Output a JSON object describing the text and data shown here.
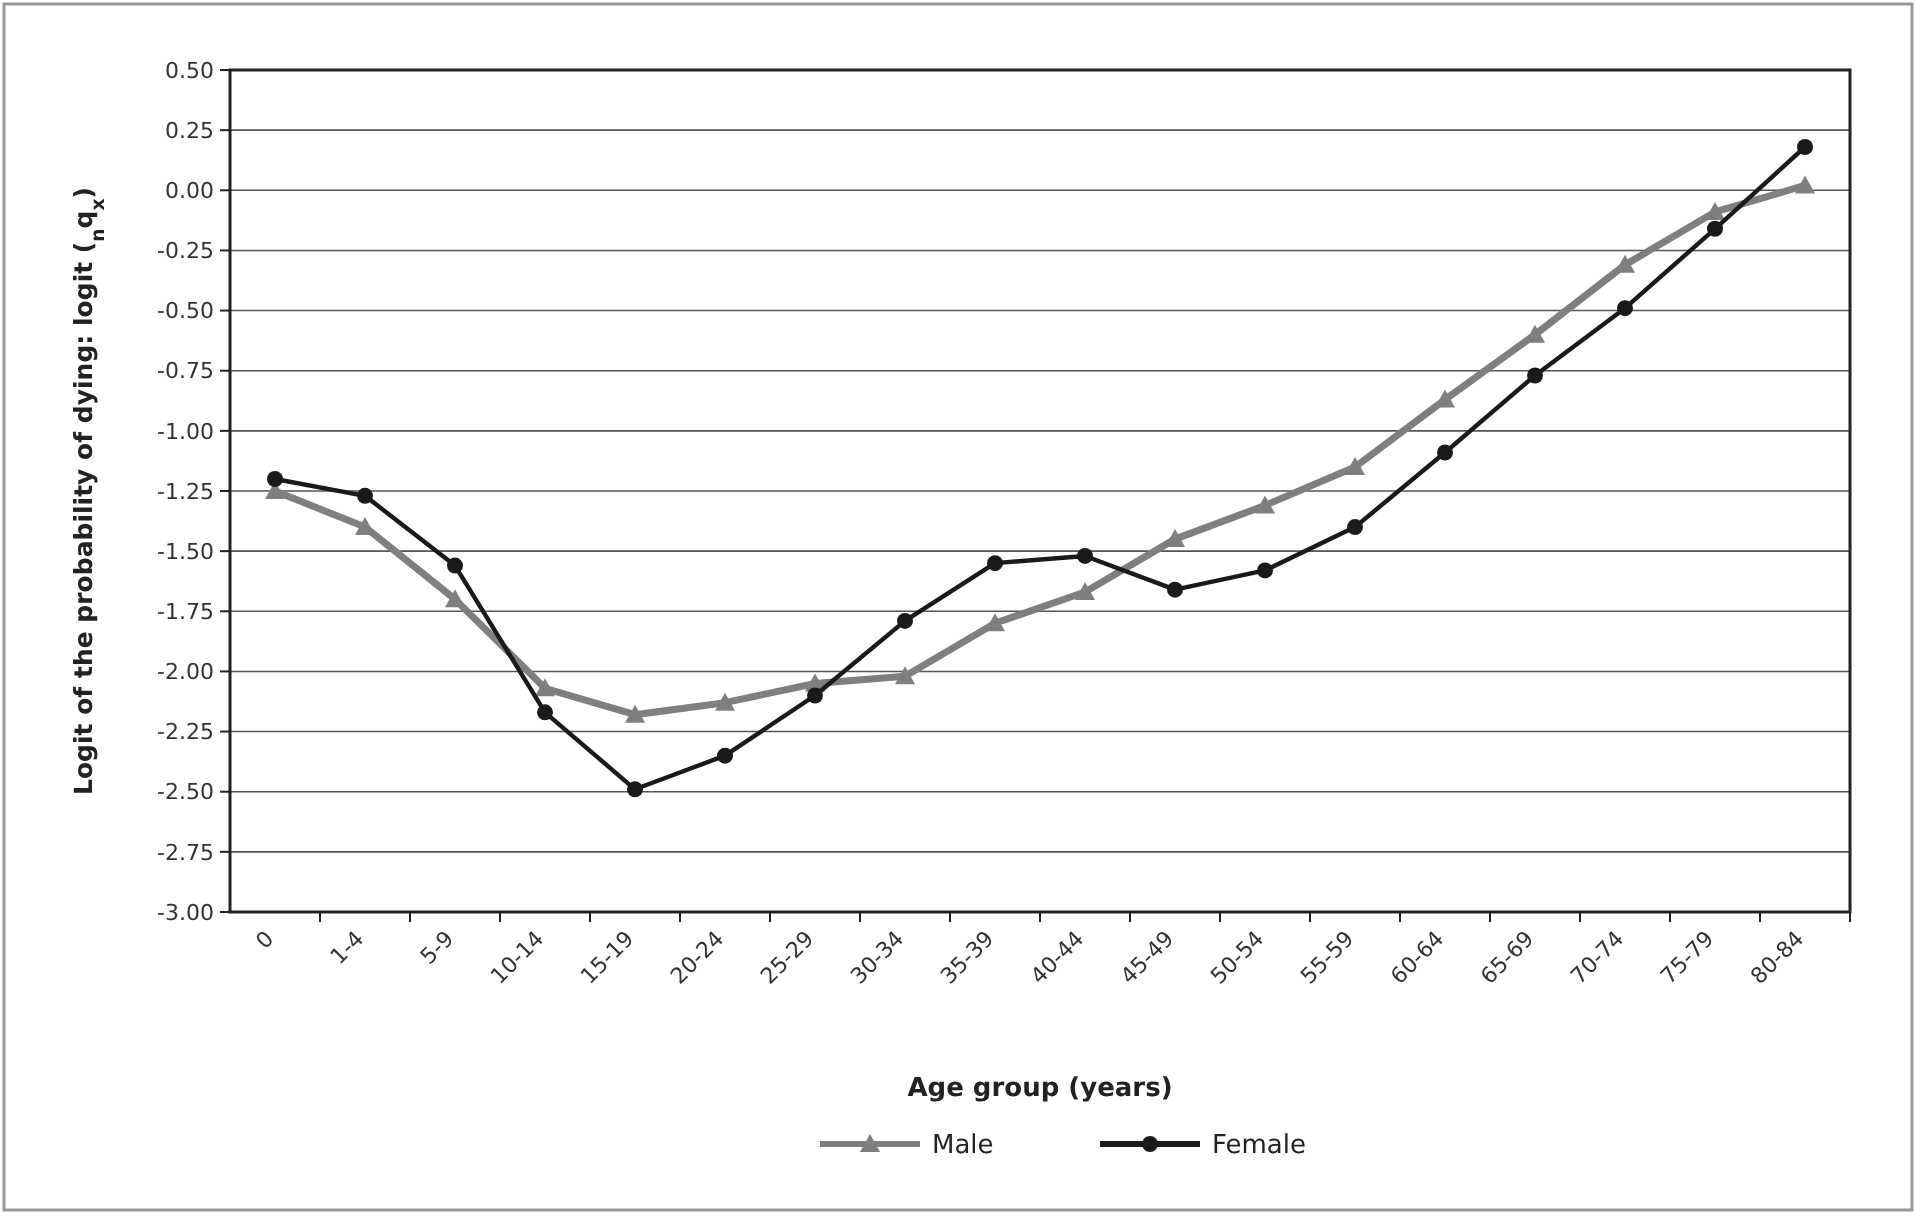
{
  "chart_data": {
    "type": "line",
    "xlabel": "Age group (years)",
    "ylabel": "Logit of the probability of dying: logit ($_{n}$q$_{x}$)",
    "categories": [
      "0",
      "1-4",
      "5-9",
      "10-14",
      "15-19",
      "20-24",
      "25-29",
      "30-34",
      "35-39",
      "40-44",
      "45-49",
      "50-54",
      "55-59",
      "60-64",
      "65-69",
      "70-74",
      "75-79",
      "80-84"
    ],
    "series": [
      {
        "name": "Male",
        "color": "#7f7f7f",
        "marker": "triangle",
        "values": [
          -1.25,
          -1.4,
          -1.7,
          -2.07,
          -2.18,
          -2.13,
          -2.05,
          -2.02,
          -1.8,
          -1.67,
          -1.45,
          -1.31,
          -1.15,
          -0.87,
          -0.6,
          -0.31,
          -0.09,
          0.02
        ]
      },
      {
        "name": "Female",
        "color": "#1a1a1a",
        "marker": "circle",
        "values": [
          -1.2,
          -1.27,
          -1.56,
          -2.17,
          -2.49,
          -2.35,
          -2.1,
          -1.79,
          -1.55,
          -1.52,
          -1.66,
          -1.58,
          -1.4,
          -1.09,
          -0.77,
          -0.49,
          -0.16,
          0.18
        ]
      }
    ],
    "ylim": [
      -3,
      0.5
    ],
    "yticks": [
      {
        "value": -3,
        "label": "-3.00"
      },
      {
        "value": -2.75,
        "label": "-2.75"
      },
      {
        "value": -2.5,
        "label": "-2.50"
      },
      {
        "value": -2.25,
        "label": "-2.25"
      },
      {
        "value": -2,
        "label": "-2.00"
      },
      {
        "value": -1.75,
        "label": "-1.75"
      },
      {
        "value": -1.5,
        "label": "-1.50"
      },
      {
        "value": -1.25,
        "label": "-1.25"
      },
      {
        "value": -1,
        "label": "-1.00"
      },
      {
        "value": -0.75,
        "label": "-0.75"
      },
      {
        "value": -0.5,
        "label": "-0.50"
      },
      {
        "value": -0.25,
        "label": "-0.25"
      },
      {
        "value": 0,
        "label": "0.00"
      },
      {
        "value": 0.25,
        "label": "0.25"
      },
      {
        "value": 0.5,
        "label": "0.50"
      }
    ],
    "grid": "y",
    "legend": "bottom",
    "line_style": "solid"
  }
}
